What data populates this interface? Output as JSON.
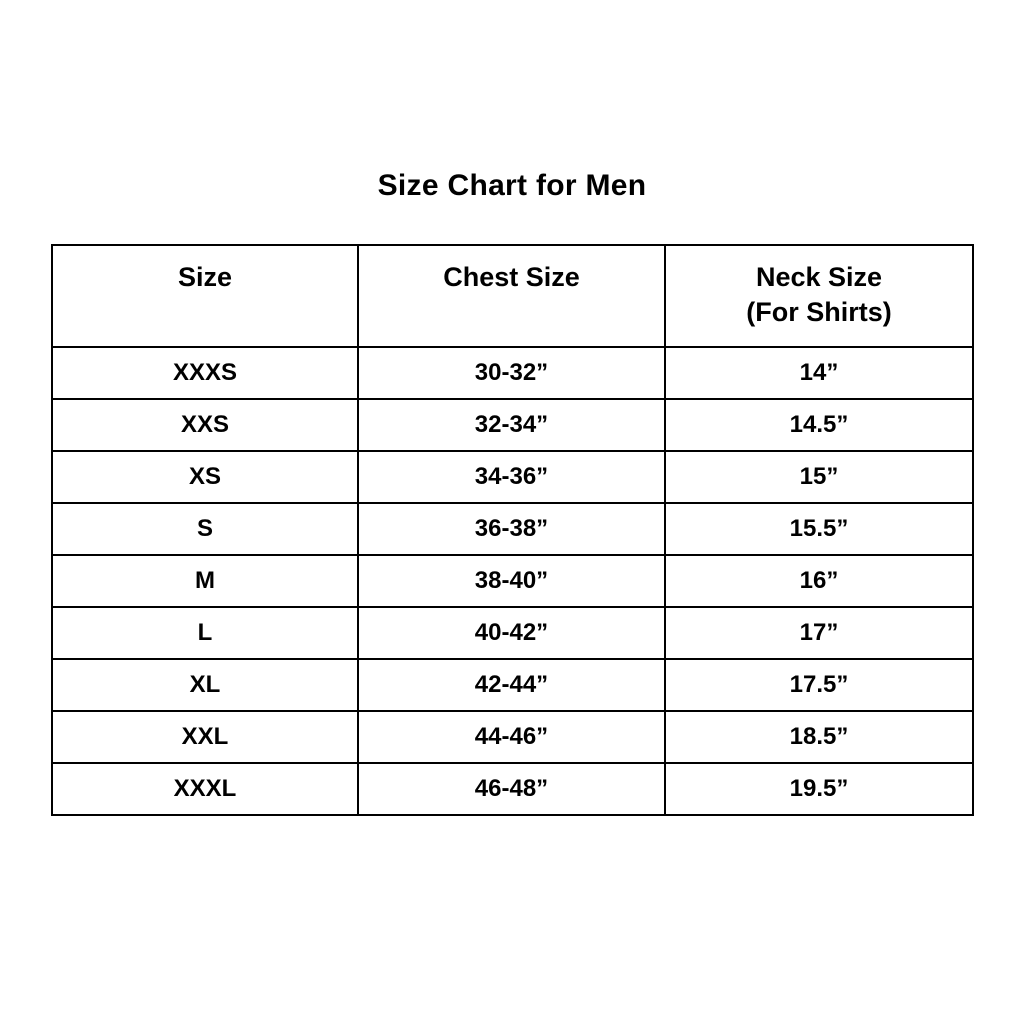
{
  "page": {
    "background": "#ffffff",
    "text_color": "#000000",
    "title": "Size Chart for Men"
  },
  "table": {
    "border_color": "#000000",
    "columns": [
      {
        "label": "Size",
        "sublabel": ""
      },
      {
        "label": "Chest Size",
        "sublabel": ""
      },
      {
        "label": "Neck Size",
        "sublabel": "(For Shirts)"
      }
    ],
    "rows": [
      {
        "size": "XXXS",
        "chest": "30-32”",
        "neck": "14”"
      },
      {
        "size": "XXS",
        "chest": "32-34”",
        "neck": "14.5”"
      },
      {
        "size": "XS",
        "chest": "34-36”",
        "neck": "15”"
      },
      {
        "size": "S",
        "chest": "36-38”",
        "neck": "15.5”"
      },
      {
        "size": "M",
        "chest": "38-40”",
        "neck": "16”"
      },
      {
        "size": "L",
        "chest": "40-42”",
        "neck": "17”"
      },
      {
        "size": "XL",
        "chest": "42-44”",
        "neck": "17.5”"
      },
      {
        "size": "XXL",
        "chest": "44-46”",
        "neck": "18.5”"
      },
      {
        "size": "XXXL",
        "chest": "46-48”",
        "neck": "19.5”"
      }
    ]
  },
  "chart_data": {
    "type": "table",
    "title": "Size Chart for Men",
    "columns": [
      "Size",
      "Chest Size",
      "Neck Size (For Shirts)"
    ],
    "rows": [
      [
        "XXXS",
        "30-32”",
        "14”"
      ],
      [
        "XXS",
        "32-34”",
        "14.5”"
      ],
      [
        "XS",
        "34-36”",
        "15”"
      ],
      [
        "S",
        "36-38”",
        "15.5”"
      ],
      [
        "M",
        "38-40”",
        "16”"
      ],
      [
        "L",
        "40-42”",
        "17”"
      ],
      [
        "XL",
        "42-44”",
        "17.5”"
      ],
      [
        "XXL",
        "44-46”",
        "18.5”"
      ],
      [
        "XXXL",
        "46-48”",
        "19.5”"
      ]
    ]
  }
}
